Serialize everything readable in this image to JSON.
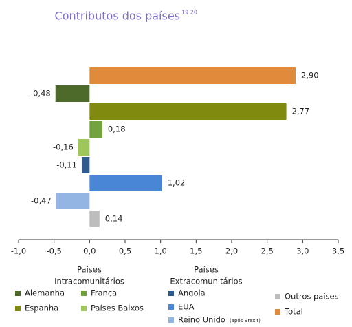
{
  "chart_data": {
    "type": "barh",
    "title": "Contributos dos países",
    "title_note": "19 20",
    "categories": [
      "Total",
      "Alemanha",
      "Espanha",
      "França",
      "Países Baixos",
      "Angola",
      "EUA",
      "Reino Unido",
      "Outros países"
    ],
    "category_notes": {
      "7": "(após Brexit)"
    },
    "values": [
      2.9,
      -0.48,
      2.77,
      0.18,
      -0.16,
      -0.11,
      1.02,
      -0.47,
      0.14
    ],
    "value_labels": [
      "2,90",
      "-0,48",
      "2,77",
      "0,18",
      "-0,16",
      "-0,11",
      "1,02",
      "-0,47",
      "0,14"
    ],
    "colors": [
      "#e08a3c",
      "#4e6a2a",
      "#7f8a0f",
      "#72a33e",
      "#9dc75a",
      "#2f5c8f",
      "#4a86d6",
      "#92b5e3",
      "#bdbdbd"
    ],
    "xlim": [
      -1.0,
      3.5
    ],
    "xticks": [
      {
        "value": -1.0,
        "label": "-1,0"
      },
      {
        "value": -0.5,
        "label": "-0,5"
      },
      {
        "value": 0.0,
        "label": "0,0"
      },
      {
        "value": 0.5,
        "label": "0,5"
      },
      {
        "value": 1.0,
        "label": "1,0"
      },
      {
        "value": 1.5,
        "label": "1,5"
      },
      {
        "value": 2.0,
        "label": "2,0"
      },
      {
        "value": 2.5,
        "label": "2,5"
      },
      {
        "value": 3.0,
        "label": "3,0"
      },
      {
        "value": 3.5,
        "label": "3,5"
      }
    ],
    "legend_groups": [
      {
        "title_lines": [
          "Países",
          "Intracomunitários"
        ]
      },
      {
        "title_lines": [
          "Países",
          "Extracomunitários"
        ]
      }
    ]
  }
}
